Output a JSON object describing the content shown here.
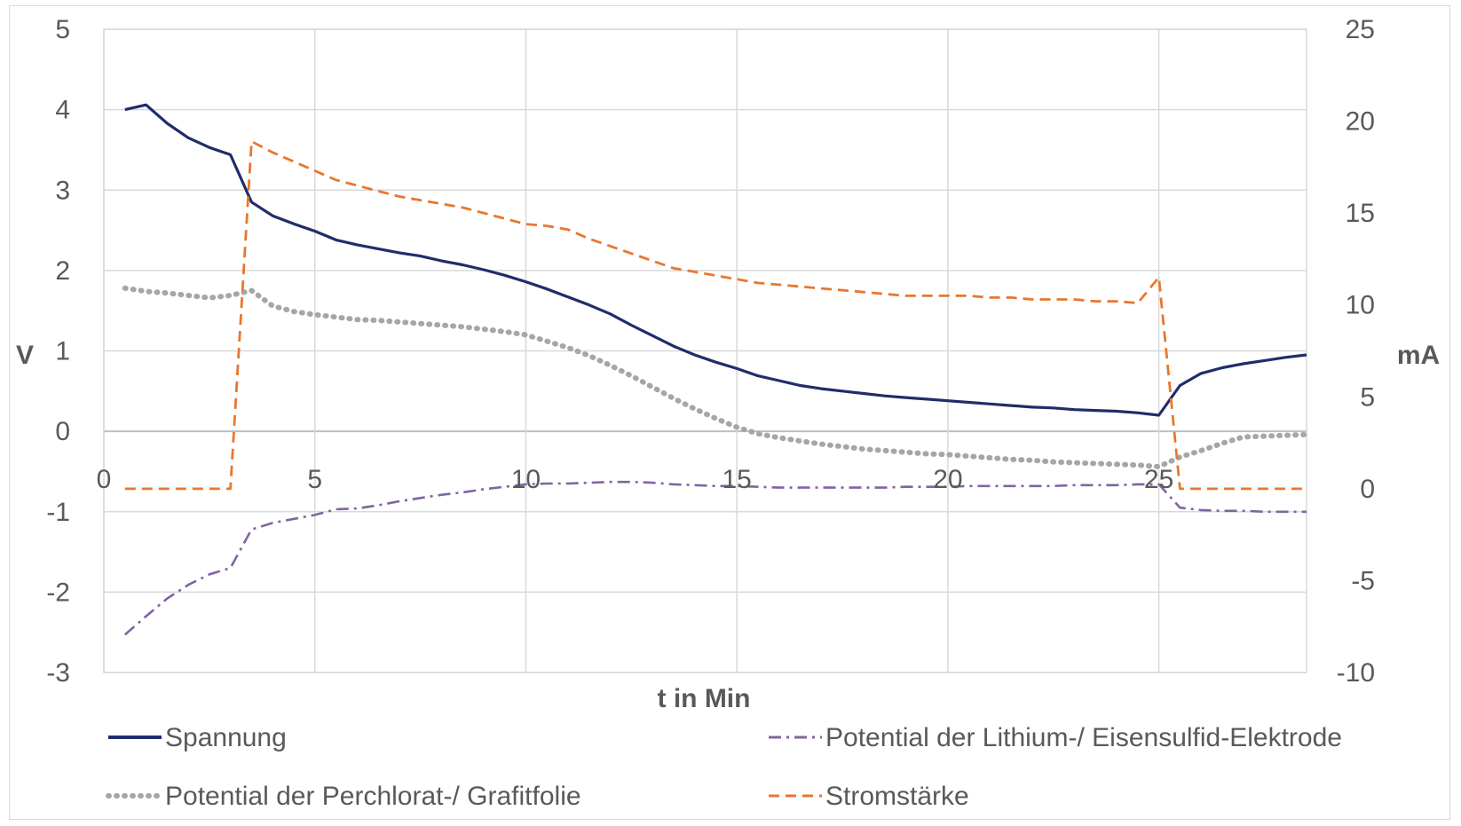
{
  "chart_data": {
    "type": "line",
    "title": "",
    "xlabel": "t in Min",
    "ylabel_left": "V",
    "ylabel_right": "mA",
    "xlim": [
      0,
      28.5
    ],
    "ylim_left": [
      -3,
      5
    ],
    "ylim_right": [
      -10,
      25
    ],
    "grid": true,
    "legend_position": "bottom",
    "x_ticks": [
      "0",
      "5",
      "10",
      "15",
      "20",
      "25"
    ],
    "x_tick_values": [
      0,
      5,
      10,
      15,
      20,
      25
    ],
    "y_left_ticks": [
      "5",
      "4",
      "3",
      "2",
      "1",
      "0",
      "-1",
      "-2",
      "-3"
    ],
    "y_left_tick_values": [
      5,
      4,
      3,
      2,
      1,
      0,
      -1,
      -2,
      -3
    ],
    "y_right_ticks": [
      "25",
      "20",
      "15",
      "10",
      "5",
      "0",
      "-5",
      "-10"
    ],
    "y_right_tick_values": [
      25,
      20,
      15,
      10,
      5,
      0,
      -5,
      -10
    ],
    "series": [
      {
        "name": "Spannung",
        "axis": "left",
        "color": "#1f2d6b",
        "style": "solid",
        "x": [
          0.5,
          1.0,
          1.5,
          2.0,
          2.5,
          3.0,
          3.5,
          4.0,
          4.5,
          5.0,
          5.5,
          6.0,
          6.5,
          7.0,
          7.5,
          8.0,
          8.5,
          9.0,
          9.5,
          10.0,
          10.5,
          11.0,
          11.5,
          12.0,
          12.5,
          13.0,
          13.5,
          14.0,
          14.5,
          15.0,
          15.5,
          16.0,
          16.5,
          17.0,
          17.5,
          18.0,
          18.5,
          19.0,
          19.5,
          20.0,
          20.5,
          21.0,
          21.5,
          22.0,
          22.5,
          23.0,
          23.5,
          24.0,
          24.5,
          25.0,
          25.5,
          26.0,
          26.5,
          27.0,
          27.5,
          28.0,
          28.5
        ],
        "values": [
          4.0,
          4.06,
          3.83,
          3.65,
          3.53,
          3.44,
          2.85,
          2.68,
          2.58,
          2.49,
          2.38,
          2.32,
          2.27,
          2.22,
          2.18,
          2.12,
          2.07,
          2.01,
          1.94,
          1.86,
          1.77,
          1.67,
          1.57,
          1.46,
          1.32,
          1.19,
          1.06,
          0.95,
          0.86,
          0.78,
          0.69,
          0.63,
          0.57,
          0.53,
          0.5,
          0.47,
          0.44,
          0.42,
          0.4,
          0.38,
          0.36,
          0.34,
          0.32,
          0.3,
          0.29,
          0.27,
          0.26,
          0.25,
          0.23,
          0.2,
          0.57,
          0.72,
          0.79,
          0.84,
          0.88,
          0.92,
          0.95
        ]
      },
      {
        "name": "Potential der Lithium-/ Eisensulfid-Elektrode",
        "axis": "left",
        "color": "#8064a2",
        "style": "dashdot",
        "x": [
          0.5,
          1.0,
          1.5,
          2.0,
          2.5,
          3.0,
          3.5,
          4.0,
          4.5,
          5.0,
          5.5,
          6.0,
          6.5,
          7.0,
          7.5,
          8.0,
          8.5,
          9.0,
          9.5,
          10.0,
          10.5,
          11.0,
          11.5,
          12.0,
          12.5,
          13.0,
          13.5,
          14.0,
          14.5,
          15.0,
          15.5,
          16.0,
          16.5,
          17.0,
          17.5,
          18.0,
          18.5,
          19.0,
          19.5,
          20.0,
          20.5,
          21.0,
          21.5,
          22.0,
          22.5,
          23.0,
          23.5,
          24.0,
          24.5,
          25.0,
          25.5,
          26.0,
          26.5,
          27.0,
          27.5,
          28.0,
          28.5
        ],
        "values": [
          -2.53,
          -2.3,
          -2.08,
          -1.91,
          -1.78,
          -1.7,
          -1.22,
          -1.14,
          -1.09,
          -1.04,
          -0.97,
          -0.96,
          -0.92,
          -0.87,
          -0.83,
          -0.79,
          -0.76,
          -0.72,
          -0.69,
          -0.66,
          -0.65,
          -0.65,
          -0.64,
          -0.63,
          -0.63,
          -0.64,
          -0.66,
          -0.67,
          -0.68,
          -0.68,
          -0.69,
          -0.7,
          -0.7,
          -0.7,
          -0.7,
          -0.7,
          -0.7,
          -0.69,
          -0.69,
          -0.69,
          -0.68,
          -0.68,
          -0.68,
          -0.68,
          -0.68,
          -0.67,
          -0.67,
          -0.67,
          -0.66,
          -0.66,
          -0.95,
          -0.98,
          -0.99,
          -0.99,
          -1.0,
          -1.0,
          -1.0
        ]
      },
      {
        "name": "Potential der Perchlorat-/ Grafitfolie",
        "axis": "left",
        "color": "#a6a6a6",
        "style": "dotted",
        "x": [
          0.5,
          1.0,
          1.5,
          2.0,
          2.5,
          3.0,
          3.5,
          4.0,
          4.5,
          5.0,
          5.5,
          6.0,
          6.5,
          7.0,
          7.5,
          8.0,
          8.5,
          9.0,
          9.5,
          10.0,
          10.5,
          11.0,
          11.5,
          12.0,
          12.5,
          13.0,
          13.5,
          14.0,
          14.5,
          15.0,
          15.5,
          16.0,
          16.5,
          17.0,
          17.5,
          18.0,
          18.5,
          19.0,
          19.5,
          20.0,
          20.5,
          21.0,
          21.5,
          22.0,
          22.5,
          23.0,
          23.5,
          24.0,
          24.5,
          25.0,
          25.5,
          26.0,
          26.5,
          27.0,
          27.5,
          28.0,
          28.5
        ],
        "values": [
          1.78,
          1.74,
          1.72,
          1.69,
          1.66,
          1.69,
          1.75,
          1.56,
          1.49,
          1.45,
          1.42,
          1.39,
          1.38,
          1.36,
          1.34,
          1.32,
          1.3,
          1.27,
          1.24,
          1.2,
          1.12,
          1.04,
          0.94,
          0.82,
          0.69,
          0.55,
          0.41,
          0.28,
          0.16,
          0.05,
          -0.03,
          -0.08,
          -0.12,
          -0.16,
          -0.19,
          -0.22,
          -0.24,
          -0.26,
          -0.28,
          -0.29,
          -0.31,
          -0.33,
          -0.35,
          -0.36,
          -0.38,
          -0.39,
          -0.4,
          -0.41,
          -0.42,
          -0.44,
          -0.32,
          -0.24,
          -0.15,
          -0.07,
          -0.06,
          -0.05,
          -0.04
        ]
      },
      {
        "name": "Stromstärke",
        "axis": "right",
        "color": "#e8772e",
        "style": "dashed",
        "x": [
          0.5,
          1.0,
          1.5,
          2.0,
          2.5,
          3.0,
          3.5,
          4.0,
          4.5,
          5.0,
          5.5,
          6.0,
          6.5,
          7.0,
          7.5,
          8.0,
          8.5,
          9.0,
          9.5,
          10.0,
          10.5,
          11.0,
          11.5,
          12.0,
          12.5,
          13.0,
          13.5,
          14.0,
          14.5,
          15.0,
          15.5,
          16.0,
          16.5,
          17.0,
          17.5,
          18.0,
          18.5,
          19.0,
          19.5,
          20.0,
          20.5,
          21.0,
          21.5,
          22.0,
          22.5,
          23.0,
          23.5,
          24.0,
          24.5,
          25.0,
          25.5,
          26.0,
          26.5,
          27.0,
          27.5,
          28.0,
          28.5
        ],
        "values": [
          0,
          0,
          0,
          0,
          0,
          0,
          18.9,
          18.3,
          17.8,
          17.3,
          16.8,
          16.5,
          16.2,
          15.9,
          15.7,
          15.5,
          15.3,
          15.0,
          14.7,
          14.4,
          14.3,
          14.1,
          13.6,
          13.2,
          12.8,
          12.4,
          12.0,
          11.8,
          11.6,
          11.4,
          11.2,
          11.1,
          11.0,
          10.9,
          10.8,
          10.7,
          10.6,
          10.5,
          10.5,
          10.5,
          10.5,
          10.4,
          10.4,
          10.3,
          10.3,
          10.3,
          10.2,
          10.2,
          10.1,
          11.5,
          0,
          0,
          0,
          0,
          0,
          0,
          0
        ]
      }
    ]
  }
}
